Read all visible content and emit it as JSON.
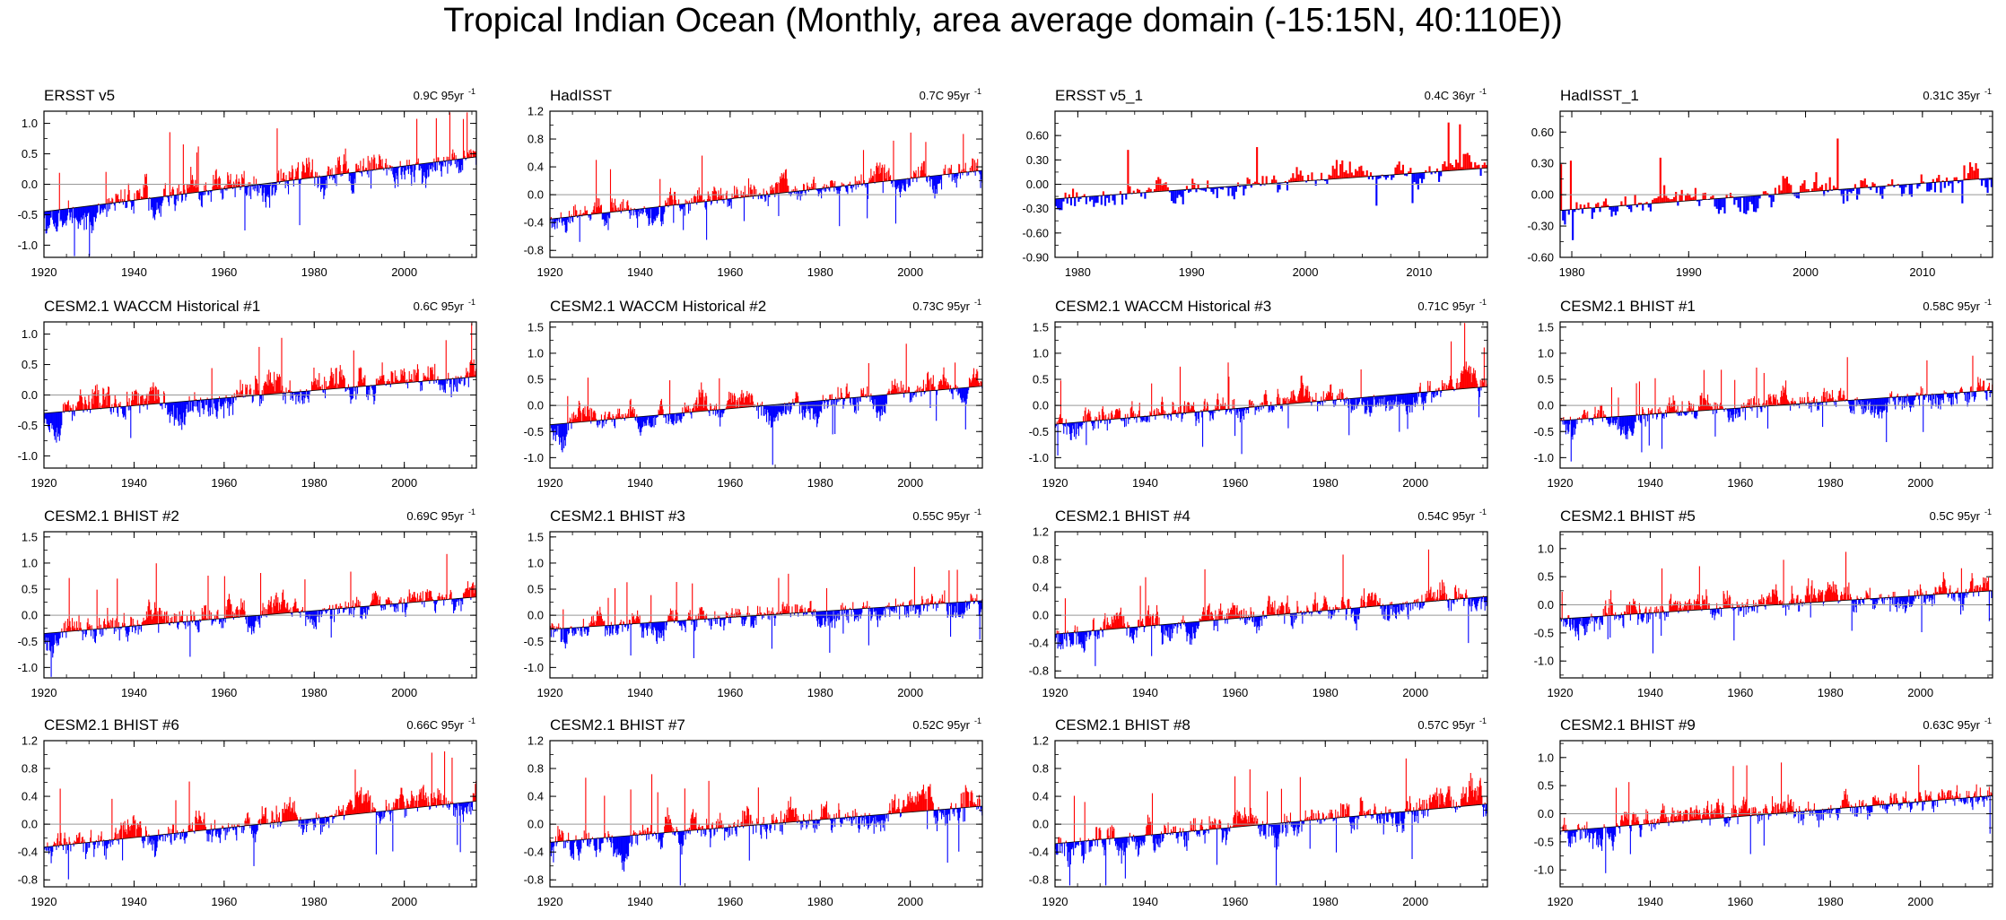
{
  "title": "Tropical Indian Ocean (Monthly, area average domain (-15:15N, 40:110E))",
  "colors": {
    "positive": "#ff0000",
    "negative": "#0000ff",
    "trend": "#000000",
    "zeroline": "#999999"
  },
  "chart_data": [
    {
      "type": "bar",
      "name": "ERSST v5",
      "trend_value": "0.9C",
      "trend_period": "95yr",
      "trend_unit": "-1",
      "x_range": [
        1920,
        2016
      ],
      "ylim": [
        -1.2,
        1.2
      ],
      "yticks": [
        "1.0",
        "0.5",
        "0.0",
        "-0.5",
        "-1.0"
      ],
      "ytick_values": [
        1.0,
        0.5,
        0.0,
        -0.5,
        -1.0
      ],
      "xticks": [
        "1920",
        "1940",
        "1960",
        "1980",
        "2000"
      ],
      "xtick_values": [
        1920,
        1940,
        1960,
        1980,
        2000
      ],
      "trend": [
        -0.45,
        0.45
      ],
      "amp": 0.32,
      "seed": 11
    },
    {
      "type": "bar",
      "name": "HadISST",
      "trend_value": "0.7C",
      "trend_period": "95yr",
      "trend_unit": "-1",
      "x_range": [
        1920,
        2016
      ],
      "ylim": [
        -0.9,
        1.2
      ],
      "yticks": [
        "1.2",
        "0.8",
        "0.4",
        "0.0",
        "-0.4",
        "-0.8"
      ],
      "ytick_values": [
        1.2,
        0.8,
        0.4,
        0.0,
        -0.4,
        -0.8
      ],
      "xticks": [
        "1920",
        "1940",
        "1960",
        "1980",
        "2000"
      ],
      "xtick_values": [
        1920,
        1940,
        1960,
        1980,
        2000
      ],
      "trend": [
        -0.35,
        0.35
      ],
      "amp": 0.22,
      "seed": 23
    },
    {
      "type": "bar",
      "name": "ERSST v5_1",
      "trend_value": "0.4C",
      "trend_period": "36yr",
      "trend_unit": "-1",
      "x_range": [
        1978,
        2016
      ],
      "ylim": [
        -0.9,
        0.9
      ],
      "yticks": [
        "0.60",
        "0.30",
        "0.00",
        "-0.30",
        "-0.60",
        "-0.90"
      ],
      "ytick_values": [
        0.6,
        0.3,
        0.0,
        -0.3,
        -0.6,
        -0.9
      ],
      "xticks": [
        "1980",
        "1990",
        "2000",
        "2010"
      ],
      "xtick_values": [
        1980,
        1990,
        2000,
        2010
      ],
      "trend": [
        -0.18,
        0.2
      ],
      "amp": 0.18,
      "seed": 37
    },
    {
      "type": "bar",
      "name": "HadISST_1",
      "trend_value": "0.31C",
      "trend_period": "35yr",
      "trend_unit": "-1",
      "x_range": [
        1979,
        2016
      ],
      "ylim": [
        -0.6,
        0.8
      ],
      "yticks": [
        "0.60",
        "0.30",
        "0.00",
        "-0.30",
        "-0.60"
      ],
      "ytick_values": [
        0.6,
        0.3,
        0.0,
        -0.3,
        -0.6
      ],
      "xticks": [
        "1980",
        "1990",
        "2000",
        "2010"
      ],
      "xtick_values": [
        1980,
        1990,
        2000,
        2010
      ],
      "trend": [
        -0.15,
        0.16
      ],
      "amp": 0.16,
      "seed": 41
    },
    {
      "type": "bar",
      "name": "CESM2.1 WACCM Historical #1",
      "trend_value": "0.6C",
      "trend_period": "95yr",
      "trend_unit": "-1",
      "x_range": [
        1920,
        2016
      ],
      "ylim": [
        -1.2,
        1.2
      ],
      "yticks": [
        "1.0",
        "0.5",
        "0.0",
        "-0.5",
        "-1.0"
      ],
      "ytick_values": [
        1.0,
        0.5,
        0.0,
        -0.5,
        -1.0
      ],
      "xticks": [
        "1920",
        "1940",
        "1960",
        "1980",
        "2000"
      ],
      "xtick_values": [
        1920,
        1940,
        1960,
        1980,
        2000
      ],
      "trend": [
        -0.3,
        0.3
      ],
      "amp": 0.3,
      "seed": 53
    },
    {
      "type": "bar",
      "name": "CESM2.1 WACCM Historical #2",
      "trend_value": "0.73C",
      "trend_period": "95yr",
      "trend_unit": "-1",
      "x_range": [
        1920,
        2016
      ],
      "ylim": [
        -1.2,
        1.6
      ],
      "yticks": [
        "1.5",
        "1.0",
        "0.5",
        "0.0",
        "-0.5",
        "-1.0"
      ],
      "ytick_values": [
        1.5,
        1.0,
        0.5,
        0.0,
        -0.5,
        -1.0
      ],
      "xticks": [
        "1920",
        "1940",
        "1960",
        "1980",
        "2000"
      ],
      "xtick_values": [
        1920,
        1940,
        1960,
        1980,
        2000
      ],
      "trend": [
        -0.37,
        0.37
      ],
      "amp": 0.28,
      "seed": 67
    },
    {
      "type": "bar",
      "name": "CESM2.1 WACCM Historical #3",
      "trend_value": "0.71C",
      "trend_period": "95yr",
      "trend_unit": "-1",
      "x_range": [
        1920,
        2016
      ],
      "ylim": [
        -1.2,
        1.6
      ],
      "yticks": [
        "1.5",
        "1.0",
        "0.5",
        "0.0",
        "-0.5",
        "-1.0"
      ],
      "ytick_values": [
        1.5,
        1.0,
        0.5,
        0.0,
        -0.5,
        -1.0
      ],
      "xticks": [
        "1920",
        "1940",
        "1960",
        "1980",
        "2000"
      ],
      "xtick_values": [
        1920,
        1940,
        1960,
        1980,
        2000
      ],
      "trend": [
        -0.36,
        0.36
      ],
      "amp": 0.28,
      "seed": 71
    },
    {
      "type": "bar",
      "name": "CESM2.1 BHIST #1",
      "trend_value": "0.58C",
      "trend_period": "95yr",
      "trend_unit": "-1",
      "x_range": [
        1920,
        2016
      ],
      "ylim": [
        -1.2,
        1.6
      ],
      "yticks": [
        "1.5",
        "1.0",
        "0.5",
        "0.0",
        "-0.5",
        "-1.0"
      ],
      "ytick_values": [
        1.5,
        1.0,
        0.5,
        0.0,
        -0.5,
        -1.0
      ],
      "xticks": [
        "1920",
        "1940",
        "1960",
        "1980",
        "2000"
      ],
      "xtick_values": [
        1920,
        1940,
        1960,
        1980,
        2000
      ],
      "trend": [
        -0.29,
        0.29
      ],
      "amp": 0.27,
      "seed": 83
    },
    {
      "type": "bar",
      "name": "CESM2.1 BHIST #2",
      "trend_value": "0.69C",
      "trend_period": "95yr",
      "trend_unit": "-1",
      "x_range": [
        1920,
        2016
      ],
      "ylim": [
        -1.2,
        1.6
      ],
      "yticks": [
        "1.5",
        "1.0",
        "0.5",
        "0.0",
        "-0.5",
        "-1.0"
      ],
      "ytick_values": [
        1.5,
        1.0,
        0.5,
        0.0,
        -0.5,
        -1.0
      ],
      "xticks": [
        "1920",
        "1940",
        "1960",
        "1980",
        "2000"
      ],
      "xtick_values": [
        1920,
        1940,
        1960,
        1980,
        2000
      ],
      "trend": [
        -0.35,
        0.35
      ],
      "amp": 0.3,
      "seed": 97
    },
    {
      "type": "bar",
      "name": "CESM2.1 BHIST #3",
      "trend_value": "0.55C",
      "trend_period": "95yr",
      "trend_unit": "-1",
      "x_range": [
        1920,
        2016
      ],
      "ylim": [
        -1.2,
        1.6
      ],
      "yticks": [
        "1.5",
        "1.0",
        "0.5",
        "0.0",
        "-0.5",
        "-1.0"
      ],
      "ytick_values": [
        1.5,
        1.0,
        0.5,
        0.0,
        -0.5,
        -1.0
      ],
      "xticks": [
        "1920",
        "1940",
        "1960",
        "1980",
        "2000"
      ],
      "xtick_values": [
        1920,
        1940,
        1960,
        1980,
        2000
      ],
      "trend": [
        -0.27,
        0.28
      ],
      "amp": 0.27,
      "seed": 101
    },
    {
      "type": "bar",
      "name": "CESM2.1 BHIST #4",
      "trend_value": "0.54C",
      "trend_period": "95yr",
      "trend_unit": "-1",
      "x_range": [
        1920,
        2016
      ],
      "ylim": [
        -0.9,
        1.2
      ],
      "yticks": [
        "1.2",
        "0.8",
        "0.4",
        "0.0",
        "-0.4",
        "-0.8"
      ],
      "ytick_values": [
        1.2,
        0.8,
        0.4,
        0.0,
        -0.4,
        -0.8
      ],
      "xticks": [
        "1920",
        "1940",
        "1960",
        "1980",
        "2000"
      ],
      "xtick_values": [
        1920,
        1940,
        1960,
        1980,
        2000
      ],
      "trend": [
        -0.27,
        0.27
      ],
      "amp": 0.24,
      "seed": 113
    },
    {
      "type": "bar",
      "name": "CESM2.1 BHIST #5",
      "trend_value": "0.5C",
      "trend_period": "95yr",
      "trend_unit": "-1",
      "x_range": [
        1920,
        2016
      ],
      "ylim": [
        -1.3,
        1.3
      ],
      "yticks": [
        "1.0",
        "0.5",
        "0.0",
        "-0.5",
        "-1.0"
      ],
      "ytick_values": [
        1.0,
        0.5,
        0.0,
        -0.5,
        -1.0
      ],
      "xticks": [
        "1920",
        "1940",
        "1960",
        "1980",
        "2000"
      ],
      "xtick_values": [
        1920,
        1940,
        1960,
        1980,
        2000
      ],
      "trend": [
        -0.25,
        0.25
      ],
      "amp": 0.28,
      "seed": 127
    },
    {
      "type": "bar",
      "name": "CESM2.1 BHIST #6",
      "trend_value": "0.66C",
      "trend_period": "95yr",
      "trend_unit": "-1",
      "x_range": [
        1920,
        2016
      ],
      "ylim": [
        -0.9,
        1.2
      ],
      "yticks": [
        "1.2",
        "0.8",
        "0.4",
        "0.0",
        "-0.4",
        "-0.8"
      ],
      "ytick_values": [
        1.2,
        0.8,
        0.4,
        0.0,
        -0.4,
        -0.8
      ],
      "xticks": [
        "1920",
        "1940",
        "1960",
        "1980",
        "2000"
      ],
      "xtick_values": [
        1920,
        1940,
        1960,
        1980,
        2000
      ],
      "trend": [
        -0.33,
        0.33
      ],
      "amp": 0.24,
      "seed": 131
    },
    {
      "type": "bar",
      "name": "CESM2.1 BHIST #7",
      "trend_value": "0.52C",
      "trend_period": "95yr",
      "trend_unit": "-1",
      "x_range": [
        1920,
        2016
      ],
      "ylim": [
        -0.9,
        1.2
      ],
      "yticks": [
        "1.2",
        "0.8",
        "0.4",
        "0.0",
        "-0.4",
        "-0.8"
      ],
      "ytick_values": [
        1.2,
        0.8,
        0.4,
        0.0,
        -0.4,
        -0.8
      ],
      "xticks": [
        "1920",
        "1940",
        "1960",
        "1980",
        "2000"
      ],
      "xtick_values": [
        1920,
        1940,
        1960,
        1980,
        2000
      ],
      "trend": [
        -0.26,
        0.26
      ],
      "amp": 0.25,
      "seed": 149
    },
    {
      "type": "bar",
      "name": "CESM2.1 BHIST #8",
      "trend_value": "0.57C",
      "trend_period": "95yr",
      "trend_unit": "-1",
      "x_range": [
        1920,
        2016
      ],
      "ylim": [
        -0.9,
        1.2
      ],
      "yticks": [
        "1.2",
        "0.8",
        "0.4",
        "0.0",
        "-0.4",
        "-0.8"
      ],
      "ytick_values": [
        1.2,
        0.8,
        0.4,
        0.0,
        -0.4,
        -0.8
      ],
      "xticks": [
        "1920",
        "1940",
        "1960",
        "1980",
        "2000"
      ],
      "xtick_values": [
        1920,
        1940,
        1960,
        1980,
        2000
      ],
      "trend": [
        -0.28,
        0.29
      ],
      "amp": 0.26,
      "seed": 157
    },
    {
      "type": "bar",
      "name": "CESM2.1 BHIST #9",
      "trend_value": "0.63C",
      "trend_period": "95yr",
      "trend_unit": "-1",
      "x_range": [
        1920,
        2016
      ],
      "ylim": [
        -1.3,
        1.3
      ],
      "yticks": [
        "1.0",
        "0.5",
        "0.0",
        "-0.5",
        "-1.0"
      ],
      "ytick_values": [
        1.0,
        0.5,
        0.0,
        -0.5,
        -1.0
      ],
      "xticks": [
        "1920",
        "1940",
        "1960",
        "1980",
        "2000"
      ],
      "xtick_values": [
        1920,
        1940,
        1960,
        1980,
        2000
      ],
      "trend": [
        -0.31,
        0.32
      ],
      "amp": 0.28,
      "seed": 163
    }
  ]
}
